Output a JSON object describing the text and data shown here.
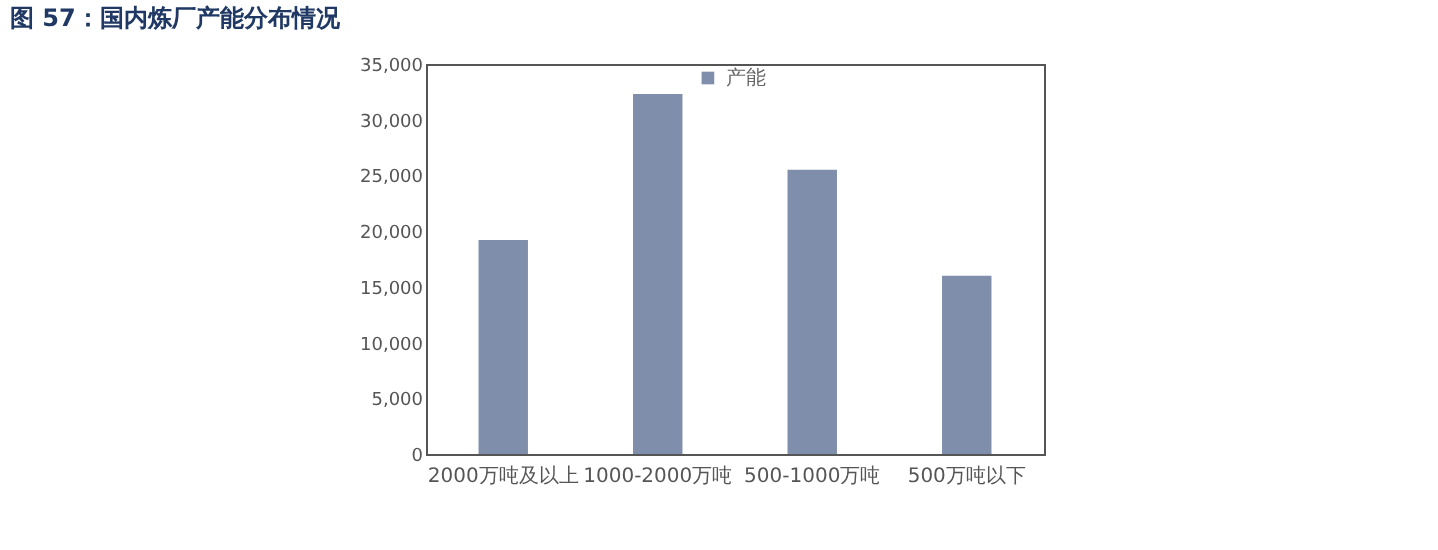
{
  "chart_data": {
    "type": "bar",
    "title": "图 57：国内炼厂产能分布情况",
    "categories": [
      "2000万吨及以上",
      "1000-2000万吨",
      "500-1000万吨",
      "500万吨以下"
    ],
    "series": [
      {
        "name": "产能",
        "color": "#7f8fab",
        "values": [
          19200,
          32300,
          25500,
          16000
        ]
      }
    ],
    "ylim": [
      0,
      35000
    ],
    "yticks": [
      {
        "value": 0,
        "label": "0"
      },
      {
        "value": 5000,
        "label": "5,000"
      },
      {
        "value": 10000,
        "label": "10,000"
      },
      {
        "value": 15000,
        "label": "15,000"
      },
      {
        "value": 20000,
        "label": "20,000"
      },
      {
        "value": 25000,
        "label": "25,000"
      },
      {
        "value": 30000,
        "label": "30,000"
      },
      {
        "value": 35000,
        "label": "35,000"
      }
    ],
    "grid": false,
    "legend": "top"
  }
}
